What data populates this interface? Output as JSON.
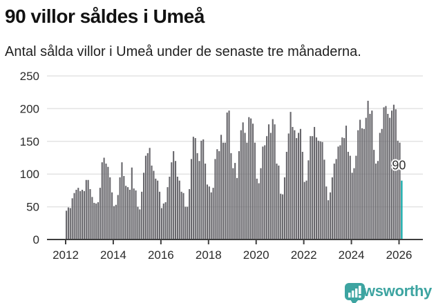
{
  "header": {
    "title": "90 villor såldes i Umeå",
    "subtitle": "Antal sålda villor i Umeå under de senaste tre månaderna."
  },
  "footer": {
    "brand": "Newsworthy"
  },
  "colors": {
    "bar": "#67666b",
    "highlight": "#00a3a3",
    "brand": "#3da4a1",
    "axis": "#3e3e3e",
    "gridline": "#e3e3e3",
    "tick_text": "#2a2a2a"
  },
  "chart_data": {
    "type": "bar",
    "title": "90 villor såldes i Umeå",
    "subtitle": "Antal sålda villor i Umeå under de senaste tre månaderna.",
    "xlabel": "",
    "ylabel": "",
    "x_start": "2012-01",
    "x_end": "2026-02",
    "x_interval": "month",
    "ylim": [
      0,
      250
    ],
    "grid": "horizontal",
    "legend": "none",
    "y_ticks": [
      0,
      50,
      100,
      150,
      200,
      250
    ],
    "x_tick_years": [
      2012,
      2014,
      2016,
      2018,
      2020,
      2022,
      2024,
      2026
    ],
    "values": [
      44,
      49,
      48,
      63,
      71,
      76,
      79,
      74,
      76,
      74,
      91,
      91,
      77,
      65,
      56,
      55,
      57,
      79,
      118,
      125,
      116,
      111,
      95,
      72,
      51,
      53,
      68,
      95,
      118,
      97,
      82,
      80,
      76,
      110,
      78,
      75,
      50,
      46,
      73,
      102,
      128,
      132,
      140,
      113,
      105,
      93,
      90,
      73,
      48,
      55,
      57,
      80,
      96,
      118,
      135,
      120,
      96,
      90,
      73,
      71,
      50,
      50,
      77,
      123,
      157,
      155,
      132,
      120,
      151,
      153,
      116,
      84,
      81,
      72,
      79,
      123,
      138,
      135,
      160,
      148,
      148,
      194,
      197,
      132,
      109,
      117,
      94,
      135,
      167,
      179,
      163,
      148,
      187,
      185,
      177,
      148,
      93,
      86,
      109,
      142,
      144,
      158,
      176,
      163,
      184,
      176,
      116,
      113,
      70,
      69,
      95,
      134,
      162,
      195,
      172,
      167,
      155,
      163,
      169,
      134,
      88,
      90,
      121,
      158,
      158,
      172,
      156,
      151,
      150,
      149,
      122,
      81,
      60,
      72,
      95,
      116,
      123,
      142,
      144,
      156,
      155,
      174,
      134,
      128,
      102,
      109,
      128,
      167,
      183,
      170,
      169,
      186,
      212,
      192,
      197,
      137,
      116,
      120,
      163,
      169,
      202,
      204,
      192,
      186,
      197,
      206,
      199,
      151,
      148,
      90
    ],
    "highlight": {
      "index": 169,
      "value": 90,
      "label": "90"
    }
  }
}
